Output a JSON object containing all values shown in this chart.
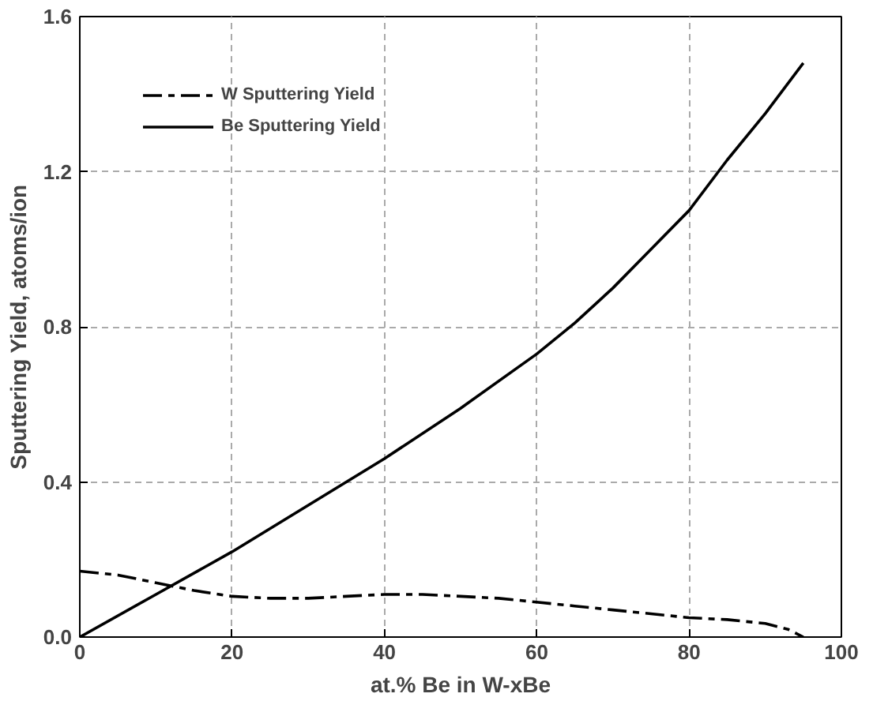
{
  "chart_data": {
    "type": "line",
    "xlabel": "at.% Be in W-xBe",
    "ylabel": "Sputtering Yield, atoms/ion",
    "xlim": [
      0,
      100
    ],
    "ylim": [
      0,
      1.6
    ],
    "xticks": [
      0,
      20,
      40,
      60,
      80,
      100
    ],
    "yticks": [
      {
        "value": 0,
        "label": "0.0"
      },
      {
        "value": 0.4,
        "label": "0.4"
      },
      {
        "value": 0.8,
        "label": "0.8"
      },
      {
        "value": 1.2,
        "label": "1.2"
      },
      {
        "value": 1.6,
        "label": "1.6"
      }
    ],
    "grid": true,
    "legend": "top left",
    "marker": "none",
    "series": [
      {
        "name": "W Sputtering Yield",
        "color": "#000000",
        "line_style": "dashed",
        "x": [
          0,
          5,
          10,
          15,
          20,
          25,
          30,
          35,
          40,
          45,
          50,
          55,
          60,
          65,
          70,
          75,
          80,
          85,
          90,
          93,
          95
        ],
        "values": [
          0.17,
          0.16,
          0.14,
          0.12,
          0.105,
          0.1,
          0.1,
          0.105,
          0.11,
          0.11,
          0.105,
          0.1,
          0.09,
          0.08,
          0.07,
          0.06,
          0.05,
          0.045,
          0.035,
          0.02,
          0.0
        ]
      },
      {
        "name": "Be Sputtering Yield",
        "color": "#000000",
        "line_style": "solid",
        "x": [
          0,
          10,
          20,
          30,
          40,
          50,
          60,
          65,
          70,
          75,
          80,
          85,
          90,
          95
        ],
        "values": [
          0,
          0.11,
          0.22,
          0.34,
          0.46,
          0.59,
          0.73,
          0.81,
          0.9,
          1.0,
          1.1,
          1.23,
          1.35,
          1.48
        ]
      }
    ]
  }
}
